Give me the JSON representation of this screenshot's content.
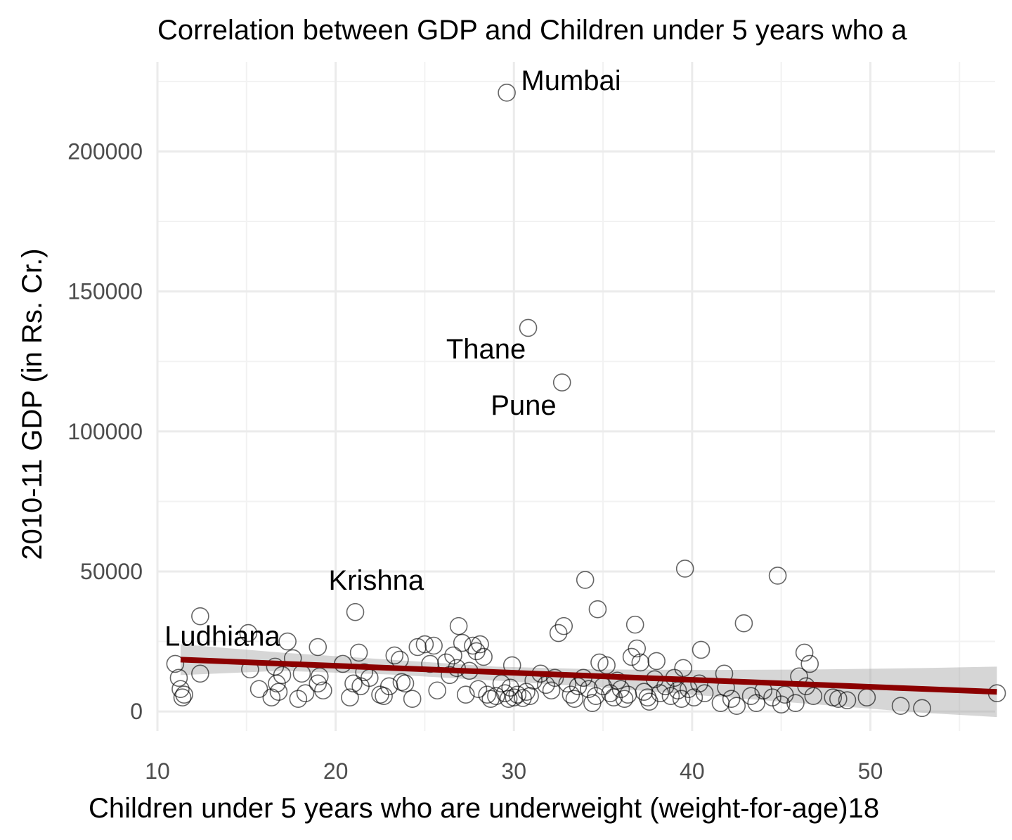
{
  "chart_data": {
    "type": "scatter",
    "title": "Correlation between GDP and Children under 5 years who a",
    "xlabel": "Children under 5 years who are underweight (weight-for-age)18",
    "ylabel": "2010-11 GDP (in Rs. Cr.)",
    "xlim": [
      10,
      57
    ],
    "ylim": [
      -7000,
      232000
    ],
    "x_ticks": [
      10,
      20,
      30,
      40,
      50
    ],
    "y_ticks": [
      0,
      50000,
      100000,
      150000,
      200000
    ],
    "x_tick_labels": [
      "10",
      "20",
      "30",
      "40",
      "50"
    ],
    "y_tick_labels": [
      "0",
      "50000",
      "100000",
      "150000",
      "200000"
    ],
    "grid": true,
    "colors": {
      "points": "#000000",
      "trend": "#8b0000",
      "ribbon": "#999999",
      "grid": "#ebebeb"
    },
    "points": [
      [
        11.0,
        17000
      ],
      [
        11.2,
        12000
      ],
      [
        11.3,
        8000
      ],
      [
        11.4,
        5000
      ],
      [
        11.5,
        6000
      ],
      [
        12.4,
        34000
      ],
      [
        12.4,
        13500
      ],
      [
        15.1,
        28000
      ],
      [
        15.2,
        15000
      ],
      [
        15.7,
        8000
      ],
      [
        16.4,
        5000
      ],
      [
        16.6,
        16000
      ],
      [
        16.7,
        10000
      ],
      [
        16.8,
        7000
      ],
      [
        17.0,
        13000
      ],
      [
        17.3,
        25000
      ],
      [
        17.6,
        19000
      ],
      [
        17.9,
        4500
      ],
      [
        18.1,
        13500
      ],
      [
        18.3,
        6500
      ],
      [
        19.0,
        10000
      ],
      [
        19.1,
        12500
      ],
      [
        19.3,
        7500
      ],
      [
        19.0,
        23000
      ],
      [
        20.4,
        17000
      ],
      [
        20.8,
        5000
      ],
      [
        21.0,
        10000
      ],
      [
        21.1,
        35500
      ],
      [
        21.3,
        21000
      ],
      [
        21.4,
        9000
      ],
      [
        21.6,
        14000
      ],
      [
        21.9,
        12000
      ],
      [
        22.5,
        6000
      ],
      [
        22.7,
        5500
      ],
      [
        23.0,
        9000
      ],
      [
        23.3,
        20000
      ],
      [
        23.6,
        18500
      ],
      [
        23.7,
        10500
      ],
      [
        23.9,
        10000
      ],
      [
        24.3,
        4500
      ],
      [
        24.6,
        23000
      ],
      [
        25.0,
        24000
      ],
      [
        25.3,
        17000
      ],
      [
        25.5,
        23500
      ],
      [
        25.7,
        7500
      ],
      [
        26.2,
        17500
      ],
      [
        26.4,
        13000
      ],
      [
        26.6,
        20000
      ],
      [
        26.8,
        15500
      ],
      [
        26.9,
        30500
      ],
      [
        27.1,
        24500
      ],
      [
        27.3,
        6000
      ],
      [
        27.5,
        14500
      ],
      [
        27.7,
        23500
      ],
      [
        27.9,
        21500
      ],
      [
        28.0,
        8000
      ],
      [
        28.1,
        24000
      ],
      [
        28.3,
        19500
      ],
      [
        28.5,
        6000
      ],
      [
        28.7,
        4500
      ],
      [
        29.0,
        5500
      ],
      [
        29.3,
        10000
      ],
      [
        29.5,
        6500
      ],
      [
        29.7,
        4500
      ],
      [
        29.8,
        8500
      ],
      [
        29.9,
        16500
      ],
      [
        30.0,
        5000
      ],
      [
        30.2,
        6000
      ],
      [
        30.5,
        4800
      ],
      [
        30.7,
        7000
      ],
      [
        30.9,
        5500
      ],
      [
        31.1,
        11000
      ],
      [
        31.5,
        13500
      ],
      [
        31.8,
        9500
      ],
      [
        32.1,
        7500
      ],
      [
        32.3,
        12000
      ],
      [
        32.5,
        28000
      ],
      [
        32.8,
        30500
      ],
      [
        33.0,
        10000
      ],
      [
        33.2,
        6000
      ],
      [
        33.4,
        4500
      ],
      [
        33.6,
        9000
      ],
      [
        33.9,
        12000
      ],
      [
        34.0,
        47000
      ],
      [
        34.2,
        8000
      ],
      [
        34.4,
        3000
      ],
      [
        34.6,
        5500
      ],
      [
        34.7,
        36500
      ],
      [
        34.8,
        17500
      ],
      [
        35.0,
        9000
      ],
      [
        35.2,
        16500
      ],
      [
        35.4,
        6500
      ],
      [
        35.6,
        5000
      ],
      [
        35.8,
        11000
      ],
      [
        36.0,
        8000
      ],
      [
        36.2,
        4500
      ],
      [
        36.4,
        6000
      ],
      [
        36.6,
        19500
      ],
      [
        36.8,
        31000
      ],
      [
        36.9,
        22500
      ],
      [
        37.1,
        17500
      ],
      [
        37.3,
        7000
      ],
      [
        37.5,
        5000
      ],
      [
        37.6,
        3500
      ],
      [
        37.9,
        11500
      ],
      [
        38.0,
        18000
      ],
      [
        38.2,
        6500
      ],
      [
        38.5,
        9000
      ],
      [
        38.8,
        5500
      ],
      [
        39.0,
        12000
      ],
      [
        39.2,
        7500
      ],
      [
        39.4,
        4500
      ],
      [
        39.5,
        15500
      ],
      [
        39.6,
        51000
      ],
      [
        39.8,
        8000
      ],
      [
        40.1,
        5000
      ],
      [
        40.4,
        10000
      ],
      [
        40.5,
        22000
      ],
      [
        40.7,
        6500
      ],
      [
        41.6,
        3000
      ],
      [
        41.8,
        13500
      ],
      [
        41.9,
        8500
      ],
      [
        42.2,
        4500
      ],
      [
        42.5,
        2000
      ],
      [
        42.9,
        31500
      ],
      [
        43.3,
        5500
      ],
      [
        43.6,
        3000
      ],
      [
        44.0,
        7500
      ],
      [
        44.5,
        5000
      ],
      [
        44.8,
        48500
      ],
      [
        45.0,
        2500
      ],
      [
        45.2,
        6000
      ],
      [
        45.8,
        3000
      ],
      [
        46.0,
        12500
      ],
      [
        46.3,
        21000
      ],
      [
        46.4,
        9000
      ],
      [
        46.6,
        17000
      ],
      [
        46.8,
        5500
      ],
      [
        47.9,
        5000
      ],
      [
        48.2,
        4500
      ],
      [
        48.7,
        4000
      ],
      [
        49.8,
        5000
      ],
      [
        51.7,
        2000
      ],
      [
        52.9,
        1200
      ],
      [
        57.1,
        6500
      ],
      [
        29.6,
        221000
      ],
      [
        30.8,
        137000
      ],
      [
        32.7,
        117500
      ]
    ],
    "trend_line": {
      "x": [
        11.3,
        57.1
      ],
      "y": [
        18500,
        7000
      ]
    },
    "confidence_band": {
      "x": [
        11.3,
        17,
        23,
        29,
        35,
        41,
        47,
        53,
        57.1
      ],
      "lower": [
        13000,
        14500,
        13200,
        11000,
        8500,
        5500,
        2500,
        -500,
        -2000
      ],
      "upper": [
        24000,
        21000,
        18500,
        16000,
        15000,
        14800,
        15000,
        15500,
        16000
      ]
    },
    "annotations": [
      {
        "text": "Mumbai",
        "x": 30.4,
        "y": 222000
      },
      {
        "text": "Thane",
        "x": 26.2,
        "y": 126000
      },
      {
        "text": "Pune",
        "x": 28.7,
        "y": 106000
      },
      {
        "text": "Krishna",
        "x": 19.6,
        "y": 43500
      },
      {
        "text": "Ludhiana",
        "x": 10.4,
        "y": 23500
      }
    ]
  }
}
